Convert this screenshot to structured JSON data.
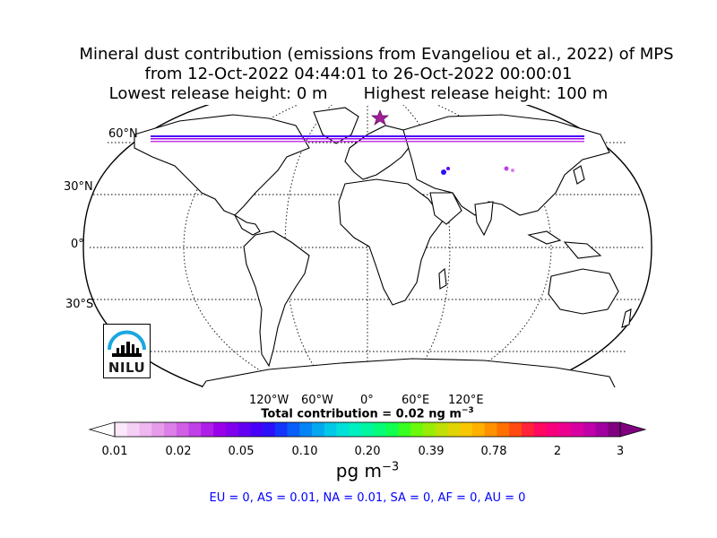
{
  "title": {
    "line1": "Mineral dust contribution (emissions from Evangeliou et al., 2022) of MPS",
    "line2": "from 12-Oct-2022 04:44:01 to 26-Oct-2022 00:00:01",
    "line3": "Lowest release height: 0 m       Highest release height: 100 m"
  },
  "map": {
    "projection": "Robinson",
    "latitude_labels": [
      "60°N",
      "30°N",
      "0°",
      "30°S"
    ],
    "longitude_labels": [
      "120°W",
      "60°W",
      "0°",
      "60°E",
      "120°E"
    ],
    "release_marker": "star",
    "release_marker_color": "#a0209a"
  },
  "total_contribution": "Total contribution = 0.02 ng m",
  "total_contribution_exp": "−3",
  "colorbar": {
    "ticks": [
      "0.01",
      "0.02",
      "0.05",
      "0.10",
      "0.20",
      "0.39",
      "0.78",
      "2",
      "3"
    ],
    "unit": "pg m",
    "unit_exp": "−3",
    "colors": [
      "#fbe8fb",
      "#f5d0f5",
      "#eeb7f0",
      "#e69ceb",
      "#dd7fe8",
      "#d05fe6",
      "#c03fe6",
      "#ae1ee8",
      "#9a00ea",
      "#8000ee",
      "#6400f2",
      "#4800f6",
      "#2c10fa",
      "#1436fa",
      "#0a5ef8",
      "#0584f5",
      "#03a8f0",
      "#02c8e8",
      "#00e0d8",
      "#00f0c0",
      "#00f7a0",
      "#04fc78",
      "#10ff50",
      "#38ff20",
      "#6cf80c",
      "#98ec08",
      "#bfe006",
      "#e0d404",
      "#f8c602",
      "#ffb000",
      "#ff9200",
      "#ff7000",
      "#ff4a10",
      "#ff2238",
      "#ff0860",
      "#f8007c",
      "#ec0090",
      "#d800a0",
      "#c000a8",
      "#a000a0",
      "#800080"
    ]
  },
  "logo": {
    "text": "NILU",
    "colors": [
      "#1aa7e0",
      "#000000"
    ]
  },
  "regions": "EU = 0,  AS = 0.01,  NA = 0.01,  SA = 0,  AF = 0,  AU = 0"
}
